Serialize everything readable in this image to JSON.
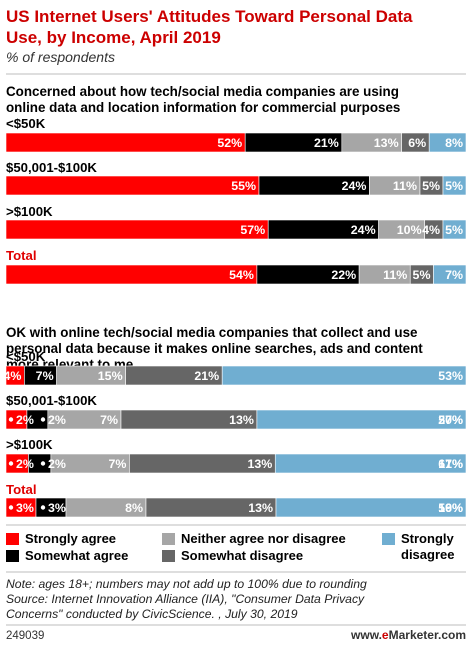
{
  "header": {
    "title_line1": "US Internet Users' Attitudes Toward Personal Data",
    "title_line2": "Use, by Income, April 2019",
    "subtitle": "% of respondents"
  },
  "colors": {
    "title": "#cc0000",
    "strongly_agree": "#ff0000",
    "somewhat_agree": "#000000",
    "neither": "#a6a6a6",
    "somewhat_disagree": "#666666",
    "strongly_disagree": "#70aed1",
    "total_label": "#e00000"
  },
  "chart_data": [
    {
      "type": "bar",
      "stacked": true,
      "orientation": "horizontal",
      "question_lines": [
        "Concerned about how tech/social media companies are using",
        "online data and location information for commercial purposes"
      ],
      "categories": [
        "<$50K",
        "$50,001-$100K",
        ">$100K",
        "Total"
      ],
      "series": [
        {
          "name": "Strongly agree",
          "values": [
            52,
            55,
            57,
            54
          ]
        },
        {
          "name": "Somewhat agree",
          "values": [
            21,
            24,
            24,
            22
          ]
        },
        {
          "name": "Neither agree nor disagree",
          "values": [
            13,
            11,
            10,
            11
          ]
        },
        {
          "name": "Somewhat disagree",
          "values": [
            6,
            5,
            4,
            5
          ]
        },
        {
          "name": "Strongly disagree",
          "values": [
            8,
            5,
            5,
            7
          ]
        }
      ]
    },
    {
      "type": "bar",
      "stacked": true,
      "orientation": "horizontal",
      "question_lines": [
        "OK with online tech/social media companies that collect and use",
        "personal data because it makes online searches, ads and content",
        "more relevant to me"
      ],
      "categories": [
        "<$50K",
        "$50,001-$100K",
        ">$100K",
        "Total"
      ],
      "series": [
        {
          "name": "Strongly agree",
          "values": [
            4,
            2,
            2,
            3
          ]
        },
        {
          "name": "Somewhat agree",
          "values": [
            7,
            2,
            2,
            3
          ]
        },
        {
          "name": "Neither agree nor disagree",
          "values": [
            15,
            7,
            7,
            8
          ]
        },
        {
          "name": "Somewhat disagree",
          "values": [
            21,
            13,
            13,
            13
          ]
        },
        {
          "name": "Strongly disagree",
          "values": [
            53,
            20,
            17,
            19
          ]
        }
      ],
      "extra_labels": [
        [],
        [
          "57%"
        ],
        [
          "61%"
        ],
        [
          "56%"
        ]
      ],
      "display_labels": [
        [
          "4%",
          "7%",
          "15%",
          "21%",
          "53%"
        ],
        [
          "2%",
          "2%",
          "7%",
          "13%",
          "20%",
          "57%"
        ],
        [
          "2%",
          "2%",
          "7%",
          "13%",
          "17%",
          "61%"
        ],
        [
          "3%",
          "3%",
          "8%",
          "13%",
          "19%",
          "56%"
        ]
      ]
    }
  ],
  "legend": {
    "items": [
      {
        "label": "Strongly agree"
      },
      {
        "label": "Somewhat agree"
      },
      {
        "label": "Neither agree nor disagree"
      },
      {
        "label": "Somewhat disagree"
      },
      {
        "label_line1": "Strongly",
        "label_line2": "disagree"
      }
    ]
  },
  "footer": {
    "note_line1": "Note: ages 18+; numbers may not add up to 100% due to rounding",
    "note_line2": "Source: Internet Innovation Alliance (IIA), \"Consumer Data Privacy",
    "note_line3": "Concerns\" conducted by CivicScience. , July 30, 2019",
    "chart_id": "249039",
    "brand_prefix": "www.",
    "brand_e": "e",
    "brand_name": "Marketer",
    "brand_suffix": ".com"
  }
}
